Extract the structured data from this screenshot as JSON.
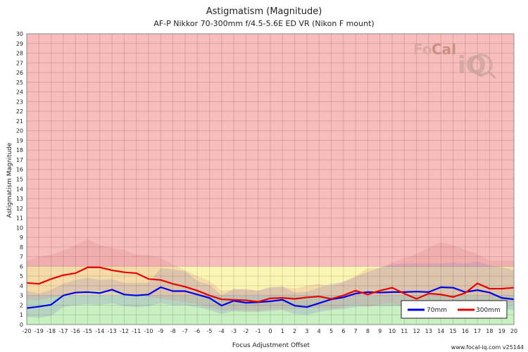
{
  "chart_data": {
    "type": "line",
    "title": "Astigmatism (Magnitude)",
    "subtitle": "AF-P Nikkor 70-300mm f/4.5-5.6E ED VR (Nikon F mount)",
    "xlabel": "Focus Adjustment Offset",
    "ylabel": "Astigmatism Magnitude",
    "xlim": [
      -20,
      20
    ],
    "ylim": [
      0,
      30
    ],
    "grid": true,
    "legend_position": "bottom-right",
    "zones": [
      {
        "from": 0,
        "to": 3,
        "color": "#c8f0c0"
      },
      {
        "from": 3,
        "to": 6,
        "color": "#fbf5b4"
      },
      {
        "from": 6,
        "to": 30,
        "color": "#f7bcbc"
      }
    ],
    "x": [
      -20,
      -19,
      -18,
      -17,
      -16,
      -15,
      -14,
      -13,
      -12,
      -11,
      -10,
      -9,
      -8,
      -7,
      -6,
      -5,
      -4,
      -3,
      -2,
      -1,
      0,
      1,
      2,
      3,
      4,
      5,
      6,
      7,
      8,
      9,
      10,
      11,
      12,
      13,
      14,
      15,
      16,
      17,
      18,
      19,
      20
    ],
    "series": [
      {
        "name": "70mm",
        "color": "#0000e6",
        "values": [
          1.7,
          1.85,
          2.05,
          3.0,
          3.3,
          3.35,
          3.25,
          3.6,
          3.1,
          3.0,
          3.1,
          3.85,
          3.45,
          3.45,
          3.1,
          2.75,
          1.95,
          2.45,
          2.25,
          2.3,
          2.4,
          2.55,
          1.95,
          1.8,
          2.2,
          2.6,
          2.8,
          3.2,
          3.35,
          3.3,
          3.35,
          3.35,
          3.4,
          3.35,
          3.85,
          3.8,
          3.35,
          3.55,
          3.3,
          2.75,
          2.6
        ],
        "band_upper": [
          3.5,
          3.2,
          3.6,
          4.2,
          4.6,
          4.8,
          4.6,
          4.7,
          4.3,
          4.3,
          4.3,
          5.8,
          5.7,
          5.5,
          4.5,
          4.1,
          3.0,
          3.7,
          3.6,
          3.5,
          3.8,
          3.9,
          3.3,
          3.4,
          3.8,
          4.2,
          4.4,
          4.9,
          5.4,
          5.9,
          6.2,
          6.3,
          6.3,
          6.3,
          6.3,
          6.4,
          6.3,
          6.5,
          6.1,
          5.9,
          5.6
        ],
        "band_lower": [
          0.8,
          0.7,
          0.9,
          1.8,
          2.0,
          2.1,
          2.0,
          2.2,
          1.9,
          1.8,
          1.9,
          2.2,
          2.0,
          2.0,
          1.8,
          1.5,
          1.1,
          1.4,
          1.3,
          1.3,
          1.4,
          1.5,
          1.1,
          1.0,
          1.3,
          1.5,
          1.6,
          1.8,
          1.9,
          1.9,
          1.9,
          1.9,
          2.0,
          1.9,
          2.2,
          2.2,
          1.9,
          2.0,
          1.9,
          1.6,
          1.5
        ]
      },
      {
        "name": "300mm",
        "color": "#e60000",
        "values": [
          4.3,
          4.2,
          4.7,
          5.1,
          5.3,
          5.9,
          5.9,
          5.6,
          5.4,
          5.3,
          4.7,
          4.6,
          4.2,
          3.9,
          3.5,
          3.0,
          2.6,
          2.55,
          2.5,
          2.35,
          2.7,
          2.75,
          2.65,
          2.8,
          2.9,
          2.65,
          3.0,
          3.5,
          3.1,
          3.5,
          3.8,
          3.2,
          2.65,
          3.2,
          3.1,
          2.85,
          3.25,
          4.25,
          3.7,
          3.7,
          3.8
        ],
        "band_upper": [
          6.6,
          7.0,
          7.2,
          7.6,
          8.2,
          8.8,
          8.2,
          7.9,
          7.7,
          7.2,
          7.2,
          6.9,
          6.2,
          5.6,
          5.0,
          4.5,
          3.5,
          3.6,
          3.7,
          3.5,
          3.9,
          3.9,
          3.7,
          4.0,
          4.2,
          3.9,
          4.4,
          5.0,
          5.8,
          5.8,
          6.4,
          6.8,
          7.3,
          7.9,
          8.5,
          8.2,
          7.7,
          7.3,
          6.6,
          6.6,
          6.6
        ],
        "band_lower": [
          2.6,
          2.5,
          2.8,
          3.0,
          3.1,
          3.5,
          3.5,
          3.3,
          3.2,
          3.1,
          2.8,
          2.7,
          2.5,
          2.3,
          2.1,
          1.8,
          1.5,
          1.5,
          1.5,
          1.4,
          1.6,
          1.6,
          1.6,
          1.7,
          1.7,
          1.6,
          1.8,
          2.1,
          1.8,
          2.1,
          2.2,
          1.9,
          1.6,
          1.9,
          1.8,
          1.7,
          1.9,
          2.5,
          2.2,
          2.2,
          2.2
        ]
      }
    ]
  },
  "branding": {
    "logo_part1": "Fo",
    "logo_part2": "Cal",
    "logo_iq": "iQ",
    "footer": "www.focal-iq.com  v25144"
  }
}
